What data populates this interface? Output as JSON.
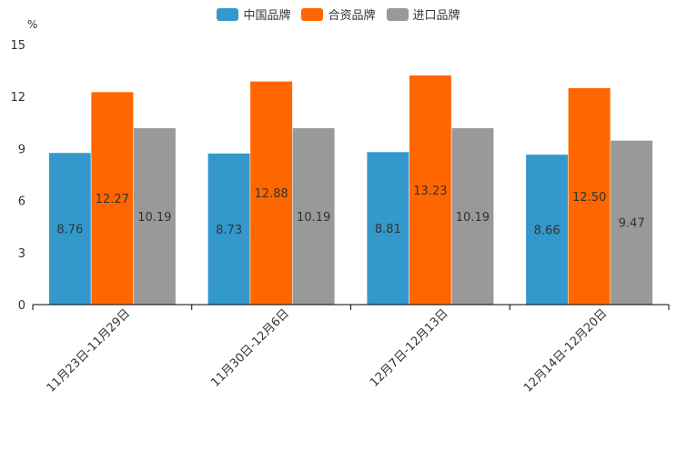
{
  "chart_data": {
    "type": "bar",
    "ylabel": "%",
    "ylim": [
      0,
      15
    ],
    "yticks": [
      "0",
      "3",
      "6",
      "9",
      "12",
      "15"
    ],
    "categories": [
      "11月23日-11月29日",
      "11月30日-12月6日",
      "12月7日-12月13日",
      "12月14日-12月20日"
    ],
    "series": [
      {
        "name": "中国品牌",
        "color": "#3399cc",
        "values": [
          8.76,
          8.73,
          8.81,
          8.66
        ],
        "labels": [
          "8.76",
          "8.73",
          "8.81",
          "8.66"
        ]
      },
      {
        "name": "合资品牌",
        "color": "#ff6600",
        "values": [
          12.27,
          12.88,
          13.23,
          12.5
        ],
        "labels": [
          "12.27",
          "12.88",
          "13.23",
          "12.50"
        ]
      },
      {
        "name": "进口品牌",
        "color": "#999999",
        "values": [
          10.19,
          10.19,
          10.19,
          9.47
        ],
        "labels": [
          "10.19",
          "10.19",
          "10.19",
          "9.47"
        ]
      }
    ]
  }
}
